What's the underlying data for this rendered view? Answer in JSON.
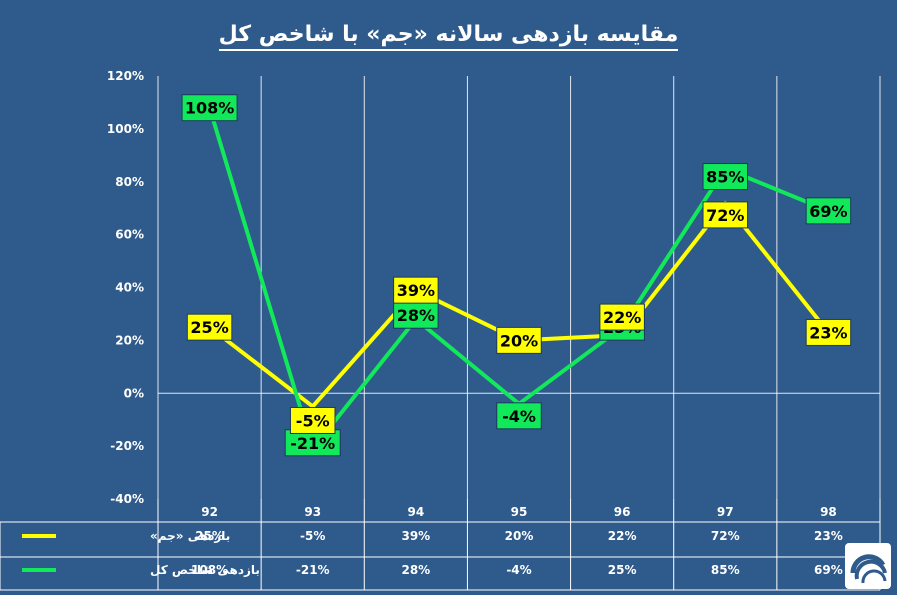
{
  "title": "مقایسه بازدهی سالانه «جم» با شاخص کل",
  "colors": {
    "background": "#2f5b8c",
    "grid": "#ffffff",
    "series_jam": "#ffff00",
    "series_index": "#11e85a"
  },
  "chart_data": {
    "type": "line",
    "x": [
      "92",
      "93",
      "94",
      "95",
      "96",
      "97",
      "98"
    ],
    "ylim": [
      -40,
      120
    ],
    "yticks": [
      -40,
      -20,
      0,
      20,
      40,
      60,
      80,
      100,
      120
    ],
    "ytick_labels": [
      "-40%",
      "-20%",
      "0%",
      "20%",
      "40%",
      "60%",
      "80%",
      "100%",
      "120%"
    ],
    "grid": true,
    "series": [
      {
        "name": "بازدهی «جم»",
        "color": "#ffff00",
        "values": [
          25,
          -5,
          39,
          20,
          22,
          72,
          23
        ],
        "labels": [
          "25%",
          "-5%",
          "39%",
          "20%",
          "22%",
          "72%",
          "23%"
        ]
      },
      {
        "name": "بازدهی شاخص کل",
        "color": "#11e85a",
        "values": [
          108,
          -21,
          28,
          -4,
          25,
          85,
          69
        ],
        "labels": [
          "108%",
          "-21%",
          "28%",
          "-4%",
          "25%",
          "85%",
          "69%"
        ]
      }
    ]
  }
}
